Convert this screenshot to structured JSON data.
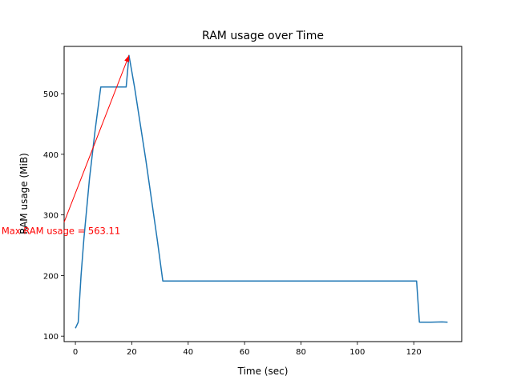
{
  "chart_data": {
    "type": "line",
    "title": "RAM usage over Time",
    "xlabel": "Time (sec)",
    "ylabel": "RAM usage (MiB)",
    "xlim": [
      -4,
      137
    ],
    "ylim": [
      91,
      578
    ],
    "xticks": [
      0,
      20,
      40,
      60,
      80,
      100,
      120
    ],
    "yticks": [
      100,
      200,
      300,
      400,
      500
    ],
    "grid": false,
    "series": [
      {
        "color": "#1f77b4",
        "x": [
          0,
          1,
          2,
          3,
          5,
          7,
          9,
          13,
          18,
          19,
          21,
          25,
          29,
          31,
          40,
          60,
          80,
          100,
          121,
          122,
          124,
          126,
          130,
          132
        ],
        "y": [
          113,
          123,
          200,
          260,
          360,
          440,
          511,
          511,
          511,
          563.11,
          510,
          390,
          260,
          191,
          191,
          191,
          191,
          191,
          191,
          123,
          123,
          123,
          123.5,
          123
        ]
      }
    ],
    "annotation": {
      "text": "Max RAM usage = 563.11",
      "color": "#ff0000",
      "point": [
        19,
        563.11
      ],
      "text_anchor_data": [
        -4,
        288
      ]
    }
  }
}
